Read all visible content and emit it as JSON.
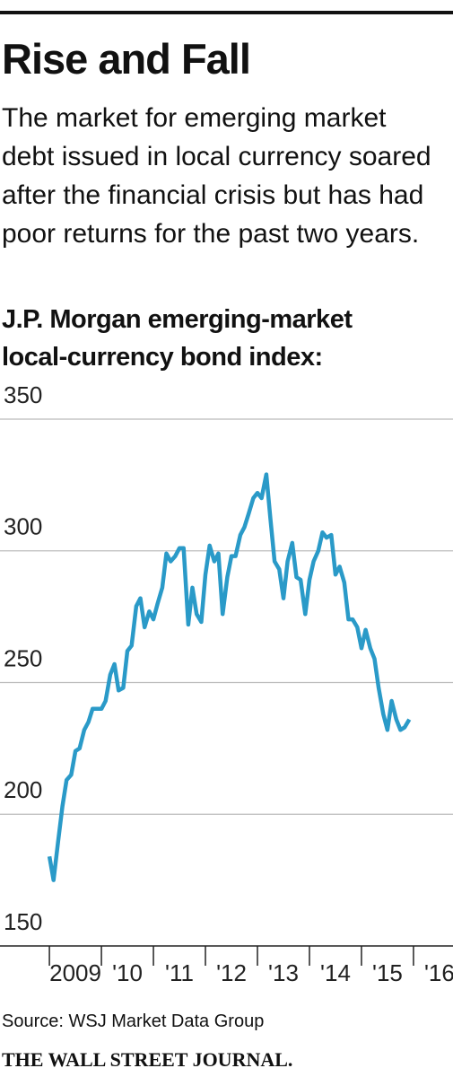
{
  "chart_data": {
    "type": "line",
    "title": "Rise and Fall",
    "subtitle": "The market for emerging market debt issued in local currency soared after the financial crisis but has had poor returns for the past two years.",
    "chart_label": "J.P. Morgan emerging-market local-currency bond index:",
    "source": "Source: WSJ Market Data Group",
    "publisher": "THE WALL STREET JOURNAL.",
    "color": "#2a9ac8",
    "grid": true,
    "xlim": [
      2008.05,
      2016.76
    ],
    "ylim": [
      150,
      350
    ],
    "yticks": [
      150,
      200,
      250,
      300,
      350
    ],
    "xticks": [
      {
        "value": 2009,
        "label": "2009"
      },
      {
        "value": 2010,
        "label": "'10"
      },
      {
        "value": 2011,
        "label": "'11"
      },
      {
        "value": 2012,
        "label": "'12"
      },
      {
        "value": 2013,
        "label": "'13"
      },
      {
        "value": 2014,
        "label": "'14"
      },
      {
        "value": 2015,
        "label": "'15"
      },
      {
        "value": 2016,
        "label": "'16"
      }
    ],
    "x": [
      2009.0,
      2009.08,
      2009.17,
      2009.25,
      2009.33,
      2009.42,
      2009.5,
      2009.58,
      2009.67,
      2009.75,
      2009.83,
      2009.92,
      2010.0,
      2010.08,
      2010.17,
      2010.25,
      2010.33,
      2010.42,
      2010.5,
      2010.58,
      2010.67,
      2010.75,
      2010.83,
      2010.92,
      2011.0,
      2011.08,
      2011.17,
      2011.25,
      2011.33,
      2011.42,
      2011.5,
      2011.58,
      2011.67,
      2011.75,
      2011.83,
      2011.92,
      2012.0,
      2012.08,
      2012.17,
      2012.25,
      2012.33,
      2012.42,
      2012.5,
      2012.58,
      2012.67,
      2012.75,
      2012.83,
      2012.92,
      2013.0,
      2013.08,
      2013.17,
      2013.25,
      2013.33,
      2013.42,
      2013.5,
      2013.58,
      2013.67,
      2013.75,
      2013.83,
      2013.92,
      2014.0,
      2014.08,
      2014.17,
      2014.25,
      2014.33,
      2014.42,
      2014.5,
      2014.58,
      2014.67,
      2014.75,
      2014.83,
      2014.92,
      2015.0,
      2015.08,
      2015.17,
      2015.25,
      2015.33,
      2015.42,
      2015.5,
      2015.58,
      2015.67,
      2015.75,
      2015.83,
      2015.92
    ],
    "values": [
      184,
      175,
      190,
      203,
      213,
      215,
      224,
      225,
      232,
      235,
      240,
      240,
      240,
      243,
      253,
      257,
      247,
      248,
      262,
      264,
      279,
      282,
      271,
      277,
      274,
      280,
      286,
      299,
      296,
      298,
      301,
      301,
      272,
      286,
      276,
      273,
      291,
      302,
      296,
      299,
      276,
      290,
      298,
      298,
      306,
      309,
      314,
      320,
      322,
      320,
      329,
      312,
      296,
      293,
      282,
      296,
      303,
      290,
      289,
      276,
      289,
      296,
      300,
      307,
      305,
      306,
      291,
      294,
      288,
      274,
      274,
      271,
      263,
      270,
      263,
      259,
      248,
      238,
      232,
      243,
      236,
      232,
      233,
      236
    ]
  }
}
